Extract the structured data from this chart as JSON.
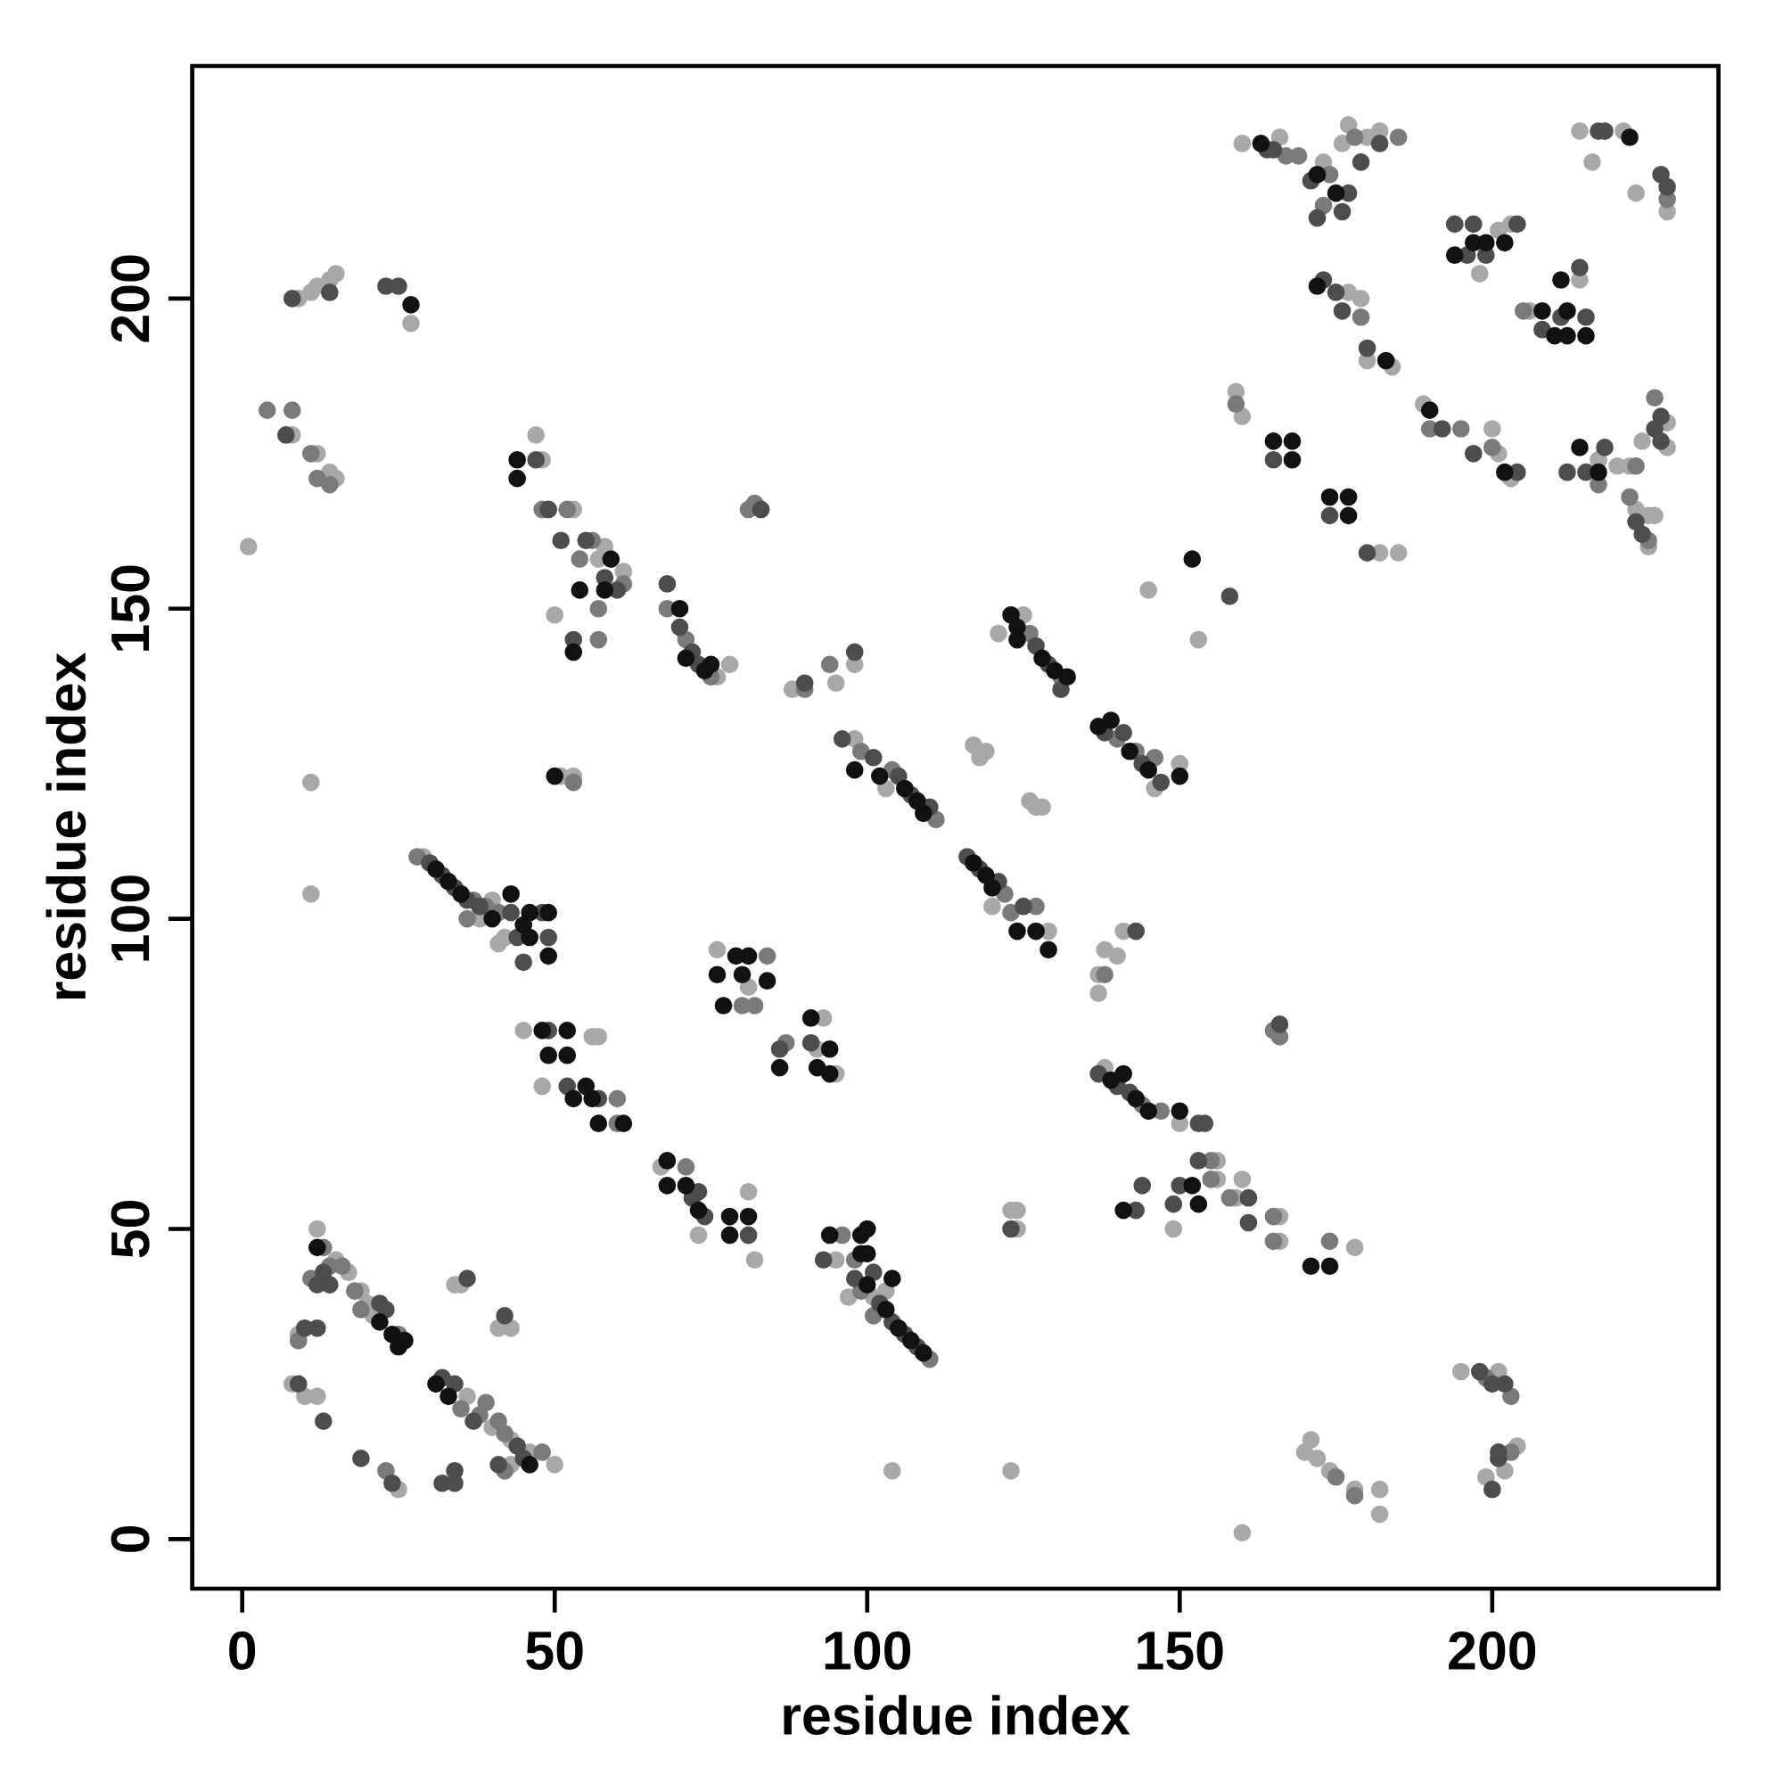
{
  "chart_data": {
    "type": "scatter",
    "xlabel": "residue index",
    "ylabel": "residue index",
    "xlim": [
      -8,
      236.2
    ],
    "ylim": [
      -8,
      237.5
    ],
    "xticks": [
      0,
      50,
      100,
      150,
      200
    ],
    "yticks": [
      0,
      50,
      100,
      150,
      200
    ],
    "marker": "circle",
    "series": [
      {
        "color": "#a8a8a8",
        "x": [
          9,
          11,
          12,
          14,
          15,
          27,
          8,
          12,
          14,
          15,
          1,
          11,
          11,
          29,
          40,
          38,
          42,
          41,
          47,
          48,
          53,
          57,
          58,
          50,
          61,
          69,
          76,
          78,
          51,
          53,
          88,
          95,
          98,
          98,
          103,
          117,
          119,
          118,
          126,
          127,
          128,
          120,
          129,
          121,
          125,
          146,
          150,
          153,
          145,
          137,
          138,
          137,
          140,
          141,
          138,
          150,
          156,
          156,
          159,
          160,
          166,
          166,
          178,
          149,
          123,
          124,
          124,
          123,
          104,
          160,
          95,
          97,
          101,
          103,
          67,
          73,
          81,
          82,
          76,
          81,
          92,
          93,
          95,
          45,
          48,
          56,
          57,
          12,
          15,
          17,
          19,
          20,
          21,
          9,
          8,
          10,
          12,
          25,
          36,
          40,
          43,
          46,
          43,
          50,
          34,
          35,
          41,
          43,
          195,
          201,
          199,
          202,
          204,
          170,
          171,
          172,
          174,
          178,
          182,
          182,
          160,
          166,
          173,
          176,
          177,
          180,
          182,
          177,
          179,
          180,
          184,
          159,
          160,
          182,
          185,
          189,
          200,
          201,
          203,
          198,
          201,
          203,
          206,
          214,
          217,
          220,
          222,
          223,
          225,
          226,
          224,
          228,
          228,
          225,
          214,
          216,
          221,
          223,
          228
        ],
        "values": [
          200,
          201,
          202,
          203,
          204,
          196,
          178,
          175,
          172,
          171,
          160,
          122,
          104,
          110,
          103,
          100,
          97,
          96,
          178,
          174,
          166,
          158,
          160,
          149,
          156,
          null,
          139,
          141,
          123,
          123,
          137,
          138,
          141,
          129,
          121,
          128,
          127,
          126,
          119,
          118,
          118,
          102,
          98,
          146,
          149,
          121,
          125,
          145,
          153,
          91,
          95,
          88,
          94,
          98,
          76,
          67,
          61,
          58,
          55,
          58,
          52,
          48,
          47,
          50,
          53,
          53,
          50,
          11,
          11,
          1,
          45,
          39,
          39,
          40,
          60,
          49,
          56,
          45,
          95,
          89,
          79,
          84,
          75,
          82,
          73,
          81,
          81,
          50,
          45,
          43,
          40,
          38,
          36,
          33,
          25,
          23,
          23,
          8,
          23,
          18,
          16,
          14,
          12,
          12,
          41,
          41,
          34,
          34,
          27,
          27,
          10,
          11,
          15,
          14,
          16,
          13,
          11,
          8,
          8,
          4,
          225,
          226,
          222,
          225,
          228,
          226,
          227,
          201,
          200,
          190,
          189,
          185,
          181,
          159,
          159,
          183,
          179,
          175,
          171,
          204,
          211,
          212,
          198,
          203,
          174,
          173,
          173,
          166,
          165,
          165,
          177,
          180,
          176,
          160,
          227,
          222,
          227,
          217,
          214
        ]
      },
      {
        "color": "#7a7a7a",
        "x": [
          4,
          8,
          11,
          12,
          14,
          28,
          37,
          39,
          41,
          36,
          48,
          52,
          54,
          56,
          57,
          57,
          61,
          68,
          71,
          75,
          53,
          81,
          82,
          90,
          94,
          99,
          104,
          111,
          122,
          123,
          127,
          126,
          131,
          140,
          143,
          146,
          138,
          144,
          147,
          155,
          155,
          158,
          165,
          166,
          165,
          165,
          174,
          96,
          98,
          99,
          101,
          110,
          71,
          80,
          82,
          84,
          87,
          60,
          60,
          13,
          11,
          14,
          16,
          18,
          19,
          25,
          9,
          23,
          35,
          38,
          39,
          41,
          42,
          42,
          48,
          199,
          203,
          203,
          175,
          178,
          167,
          169,
          174,
          173,
          178,
          185,
          179,
          159,
          190,
          195,
          200,
          202,
          205,
          217,
          223,
          222,
          225,
          226,
          228
        ],
        "values": [
          182,
          182,
          175,
          171,
          170,
          110,
          103,
          102,
          101,
          100,
          166,
          166,
          158,
          161,
          150,
          145,
          154,
          150,
          145,
          139,
          122,
          166,
          167,
          137,
          141,
          127,
          124,
          116,
          104,
          101,
          102,
          146,
          139,
          129,
          127,
          126,
          91,
          70,
          69,
          61,
          58,
          55,
          82,
          81,
          52,
          48,
          48,
          49,
          45,
          40,
          36,
          29,
          60,
          86,
          86,
          94,
          80,
          71,
          67,
          47,
          42,
          44,
          44,
          40,
          37,
          33,
          32,
          11,
          21,
          20,
          22,
          19,
          17,
          11,
          14,
          26,
          23,
          14,
          10,
          7,
          223,
          223,
          220,
          215,
          226,
          226,
          197,
          183,
          179,
          179,
          176,
          null,
          198,
          170,
          173,
          168,
          161,
          184,
          216
        ]
      },
      {
        "color": "#4d4d4d",
        "x": [
          8,
          14,
          23,
          25,
          7,
          30,
          32,
          34,
          36,
          38,
          43,
          44,
          45,
          48,
          49,
          47,
          49,
          51,
          55,
          58,
          53,
          60,
          68,
          70,
          72,
          73,
          83,
          90,
          98,
          96,
          101,
          105,
          107,
          110,
          116,
          118,
          121,
          125,
          127,
          129,
          131,
          138,
          141,
          144,
          147,
          158,
          143,
          137,
          140,
          142,
          153,
          154,
          153,
          161,
          161,
          149,
          150,
          144,
          143,
          166,
          123,
          93,
          98,
          101,
          102,
          104,
          106,
          108,
          72,
          73,
          74,
          81,
          86,
          91,
          49,
          52,
          57,
          12,
          13,
          14,
          22,
          23,
          10,
          12,
          9,
          13,
          19,
          24,
          32,
          34,
          37,
          44,
          45,
          41,
          32,
          34,
          34,
          36,
          42,
          198,
          200,
          202,
          200,
          201,
          201,
          164,
          165,
          171,
          172,
          176,
          177,
          179,
          182,
          217,
          173,
          175,
          176,
          180,
          165,
          174,
          180,
          192,
          197,
          204,
          194,
          196,
          197,
          199,
          204,
          208,
          211,
          214,
          215,
          212,
          215,
          218,
          223,
          224,
          226,
          227,
          227,
          218,
          227,
          228
        ],
        "values": [
          200,
          201,
          202,
          202,
          178,
          109,
          107,
          105,
          103,
          102,
          101,
          97,
          93,
          101,
          97,
          174,
          166,
          161,
          161,
          155,
          145,
          153,
          154,
          147,
          143,
          141,
          166,
          138,
          143,
          129,
          126,
          123,
          120,
          118,
          110,
          108,
          106,
          102,
          144,
          141,
          137,
          130,
          130,
          125,
          122,
          152,
          98,
          75,
          73,
          72,
          67,
          67,
          61,
          55,
          51,
          54,
          57,
          57,
          53,
          83,
          50,
          45,
          42,
          43,
          38,
          35,
          33,
          31,
          55,
          56,
          52,
          49,
          79,
          80,
          82,
          73,
          71,
          41,
          43,
          41,
          38,
          37,
          34,
          34,
          25,
          19,
          13,
          9,
          26,
          25,
          19,
          15,
          13,
          12,
          9,
          9,
          11,
          42,
          36,
          27,
          25,
          25,
          8,
          13,
          14,
          224,
          224,
          219,
          213,
          214,
          217,
          222,
          225,
          227,
          203,
          201,
          198,
          192,
          174,
          165,
          159,
          179,
          175,
          172,
          212,
          207,
          212,
          207,
          212,
          195,
          197,
          205,
          197,
          172,
          172,
          176,
          164,
          162,
          179,
          177,
          181,
          227,
          220,
          218
        ]
      },
      {
        "color": "#111111",
        "x": [
          27,
          31,
          33,
          35,
          43,
          40,
          45,
          46,
          46,
          49,
          49,
          44,
          44,
          59,
          58,
          54,
          53,
          70,
          71,
          74,
          75,
          50,
          98,
          102,
          106,
          108,
          109,
          117,
          119,
          120,
          124,
          127,
          129,
          123,
          124,
          124,
          128,
          130,
          132,
          137,
          139,
          142,
          145,
          150,
          152,
          139,
          141,
          143,
          145,
          150,
          152,
          153,
          141,
          171,
          174,
          94,
          99,
          99,
          100,
          100,
          100,
          103,
          105,
          107,
          109,
          104,
          68,
          68,
          71,
          73,
          78,
          78,
          81,
          76,
          77,
          79,
          80,
          81,
          84,
          86,
          91,
          92,
          94,
          94,
          48,
          49,
          52,
          52,
          53,
          55,
          56,
          57,
          61,
          12,
          22,
          24,
          25,
          26,
          31,
          33,
          46,
          163,
          172,
          175,
          172,
          183,
          165,
          168,
          168,
          174,
          177,
          177,
          190,
          202,
          194,
          197,
          199,
          202,
          208,
          210,
          211,
          212,
          212,
          215,
          214,
          217,
          222
        ],
        "values": [
          199,
          108,
          106,
          104,
          104,
          100,
          99,
          101,
          97,
          101,
          94,
          174,
          171,
          158,
          153,
          153,
          143,
          150,
          142,
          140,
          141,
          123,
          124,
          123,
          121,
          119,
          117,
          109,
          107,
          105,
          98,
          98,
          95,
          149,
          147,
          145,
          142,
          140,
          139,
          131,
          132,
          127,
          124,
          123,
          158,
          74,
          75,
          71,
          69,
          69,
          57,
          54,
          53,
          44,
          44,
          49,
          49,
          46,
          50,
          46,
          41,
          37,
          34,
          32,
          30,
          42,
          61,
          57,
          57,
          53,
          52,
          49,
          52,
          91,
          86,
          94,
          91,
          94,
          90,
          76,
          84,
          76,
          79,
          75,
          82,
          78,
          82,
          78,
          71,
          73,
          71,
          67,
          67,
          47,
          35,
          33,
          31,
          32,
          25,
          23,
          12,
          225,
          220,
          217,
          202,
          190,
          177,
          177,
          174,
          168,
          168,
          165,
          182,
          172,
          207,
          209,
          209,
          209,
          198,
          194,
          203,
          198,
          194,
          194,
          176,
          172,
          226
        ]
      }
    ]
  }
}
